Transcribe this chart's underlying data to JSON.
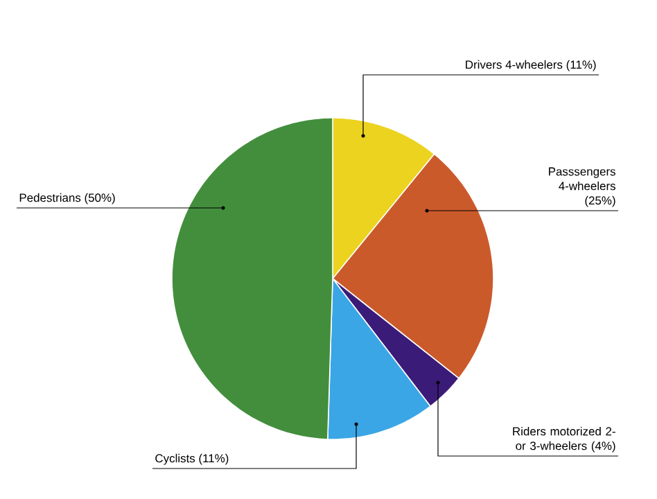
{
  "chart_data": {
    "type": "pie",
    "categories": [
      "Drivers 4-wheelers (11%)",
      "Passsengers 4-wheelers (25%)",
      "Riders motorized 2- or 3-wheelers (4%)",
      "Cyclists (11%)",
      "Pedestrians (50%)"
    ],
    "values": [
      11,
      25,
      4,
      11,
      50
    ],
    "colors": [
      "#ecd31f",
      "#cb5a2b",
      "#3b1b78",
      "#3ba6e6",
      "#438e3d"
    ]
  }
}
